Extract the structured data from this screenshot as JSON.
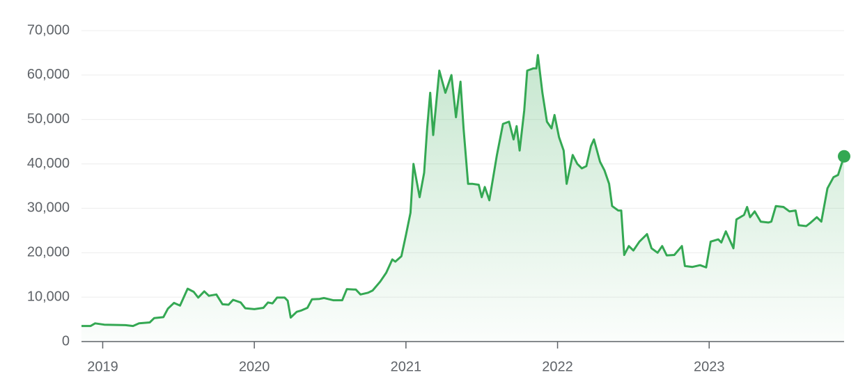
{
  "chart_data": {
    "type": "line",
    "x": [
      2018.86,
      2018.92,
      2018.95,
      2019.01,
      2019.15,
      2019.2,
      2019.24,
      2019.31,
      2019.34,
      2019.4,
      2019.43,
      2019.47,
      2019.51,
      2019.56,
      2019.6,
      2019.63,
      2019.67,
      2019.7,
      2019.75,
      2019.79,
      2019.83,
      2019.86,
      2019.91,
      2019.94,
      2020.0,
      2020.06,
      2020.09,
      2020.12,
      2020.15,
      2020.2,
      2020.22,
      2020.24,
      2020.28,
      2020.31,
      2020.35,
      2020.38,
      2020.43,
      2020.46,
      2020.52,
      2020.58,
      2020.61,
      2020.67,
      2020.7,
      2020.75,
      2020.78,
      2020.83,
      2020.87,
      2020.91,
      2020.93,
      2020.97,
      2021.0,
      2021.03,
      2021.05,
      2021.09,
      2021.12,
      2021.14,
      2021.16,
      2021.18,
      2021.22,
      2021.26,
      2021.3,
      2021.33,
      2021.36,
      2021.38,
      2021.41,
      2021.44,
      2021.48,
      2021.5,
      2021.52,
      2021.55,
      2021.6,
      2021.64,
      2021.68,
      2021.71,
      2021.73,
      2021.75,
      2021.78,
      2021.8,
      2021.84,
      2021.86,
      2021.87,
      2021.9,
      2021.93,
      2021.96,
      2021.98,
      2022.01,
      2022.04,
      2022.06,
      2022.1,
      2022.13,
      2022.16,
      2022.19,
      2022.22,
      2022.24,
      2022.28,
      2022.31,
      2022.34,
      2022.36,
      2022.4,
      2022.42,
      2022.44,
      2022.47,
      2022.5,
      2022.54,
      2022.57,
      2022.59,
      2022.62,
      2022.66,
      2022.69,
      2022.72,
      2022.77,
      2022.82,
      2022.84,
      2022.89,
      2022.94,
      2022.98,
      2023.01,
      2023.06,
      2023.08,
      2023.11,
      2023.16,
      2023.18,
      2023.23,
      2023.25,
      2023.27,
      2023.3,
      2023.34,
      2023.39,
      2023.41,
      2023.44,
      2023.49,
      2023.53,
      2023.57,
      2023.59,
      2023.64,
      2023.67,
      2023.71,
      2023.74,
      2023.78,
      2023.82,
      2023.85,
      2023.89
    ],
    "values": [
      3500,
      3500,
      4100,
      3800,
      3700,
      3500,
      4100,
      4300,
      5300,
      5500,
      7400,
      8700,
      8100,
      11900,
      11200,
      9900,
      11300,
      10300,
      10600,
      8400,
      8300,
      9400,
      8800,
      7500,
      7300,
      7600,
      8800,
      8600,
      9900,
      9900,
      9200,
      5400,
      6700,
      7000,
      7600,
      9500,
      9600,
      9800,
      9300,
      9300,
      11800,
      11700,
      10600,
      11000,
      11500,
      13500,
      15500,
      18500,
      18000,
      19200,
      24000,
      29000,
      40000,
      32500,
      38000,
      48000,
      56000,
      46500,
      61000,
      56000,
      60000,
      50500,
      58500,
      48000,
      35500,
      35500,
      35300,
      32500,
      34800,
      31800,
      42000,
      49000,
      49500,
      45500,
      48500,
      43000,
      52000,
      61000,
      61500,
      61500,
      64500,
      56000,
      49500,
      48000,
      51000,
      46000,
      43000,
      35500,
      42000,
      40000,
      39000,
      39500,
      44000,
      45500,
      40500,
      38500,
      35500,
      30500,
      29500,
      29500,
      19500,
      21500,
      20500,
      22500,
      23500,
      24200,
      21000,
      20000,
      21500,
      19400,
      19500,
      21500,
      17000,
      16800,
      17200,
      16700,
      22500,
      23000,
      22300,
      24800,
      21000,
      27500,
      28500,
      30300,
      28000,
      29300,
      27000,
      26800,
      27000,
      30500,
      30300,
      29300,
      29500,
      26200,
      26000,
      26800,
      28000,
      27000,
      34500,
      37000,
      37500,
      41700
    ],
    "color": "#34a853",
    "xlim": [
      2018.86,
      2023.89
    ],
    "xticks": [
      2019,
      2020,
      2021,
      2022,
      2023
    ],
    "ylim": [
      0,
      70000
    ],
    "yticks": [
      0,
      {
        "value": 10000,
        "label": "10,000"
      },
      {
        "value": 20000,
        "label": "20,000"
      },
      {
        "value": 30000,
        "label": "30,000"
      },
      {
        "value": 40000,
        "label": "40,000"
      },
      {
        "value": 50000,
        "label": "50,000"
      },
      {
        "value": 60000,
        "label": "60,000"
      },
      {
        "value": 70000,
        "label": "70,000"
      }
    ],
    "grid": true
  }
}
